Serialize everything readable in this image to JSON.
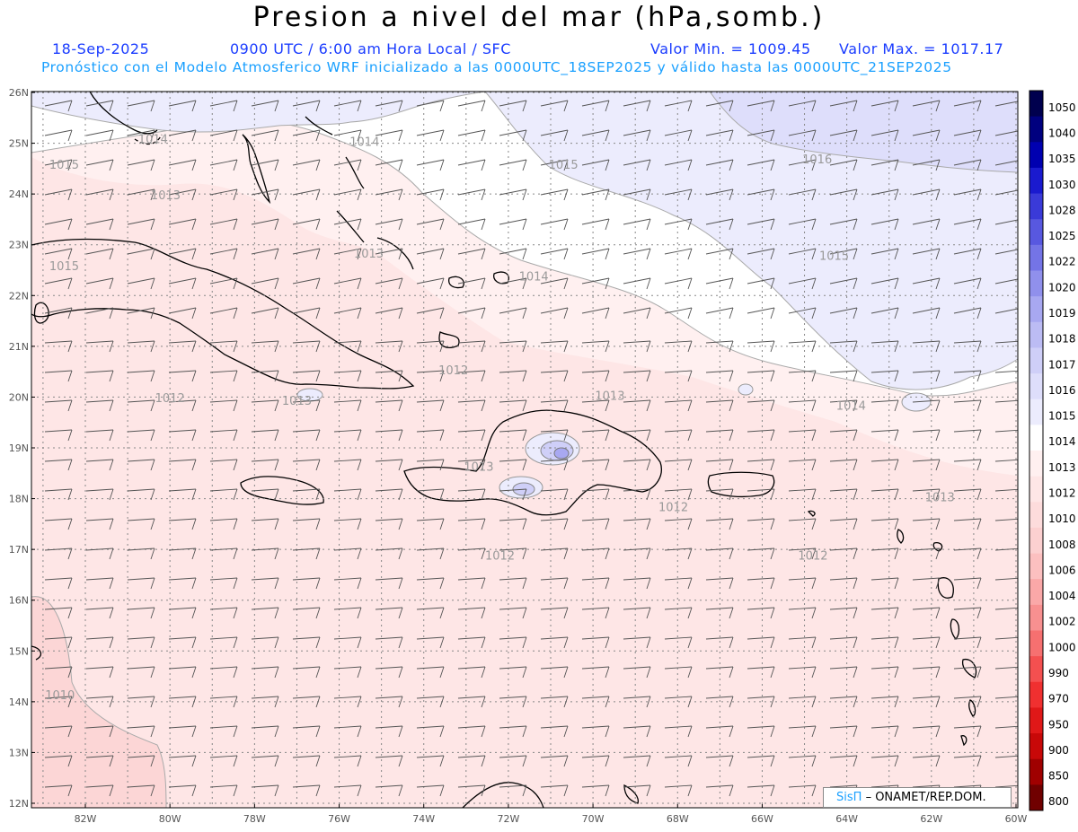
{
  "header": {
    "title": "Presion a nivel del mar (hPa,somb.)",
    "date": "18-Sep-2025",
    "time_info": "0900 UTC / 6:00 am Hora Local / SFC",
    "value_min": "Valor Min. = 1009.45",
    "value_max": "Valor Max. = 1017.17",
    "forecast_info": "Pronóstico con el Modelo Atmosferico WRF inicializado a las 0000UTC_18SEP2025 y válido hasta las  0000UTC_21SEP2025"
  },
  "map": {
    "lon_labels": [
      "82W",
      "80W",
      "78W",
      "76W",
      "74W",
      "72W",
      "70W",
      "68W",
      "66W",
      "64W",
      "62W",
      "60W"
    ],
    "lat_labels": [
      "26N",
      "25N",
      "24N",
      "23N",
      "22N",
      "21N",
      "20N",
      "19N",
      "18N",
      "17N",
      "16N",
      "15N",
      "14N",
      "13N",
      "12N"
    ],
    "contour_labels": [
      {
        "text": "1014",
        "lon": -80.4,
        "lat": 25.0
      },
      {
        "text": "1014",
        "lon": -75.4,
        "lat": 24.95
      },
      {
        "text": "1015",
        "lon": -70.7,
        "lat": 24.5
      },
      {
        "text": "1016",
        "lon": -64.7,
        "lat": 24.6
      },
      {
        "text": "1015",
        "lon": -82.5,
        "lat": 24.5
      },
      {
        "text": "1013",
        "lon": -80.1,
        "lat": 23.9
      },
      {
        "text": "1013",
        "lon": -75.3,
        "lat": 22.75
      },
      {
        "text": "1015",
        "lon": -64.3,
        "lat": 22.7
      },
      {
        "text": "1015",
        "lon": -82.5,
        "lat": 22.5
      },
      {
        "text": "1014",
        "lon": -71.4,
        "lat": 22.3
      },
      {
        "text": "1012",
        "lon": -73.3,
        "lat": 20.45
      },
      {
        "text": "1013",
        "lon": -69.6,
        "lat": 19.95
      },
      {
        "text": "1012",
        "lon": -80.0,
        "lat": 19.9
      },
      {
        "text": "1013",
        "lon": -77.0,
        "lat": 19.85
      },
      {
        "text": "1014",
        "lon": -63.9,
        "lat": 19.75
      },
      {
        "text": "1013",
        "lon": -72.7,
        "lat": 18.55
      },
      {
        "text": "1012",
        "lon": -68.1,
        "lat": 17.75
      },
      {
        "text": "1013",
        "lon": -61.8,
        "lat": 17.95
      },
      {
        "text": "1012",
        "lon": -72.2,
        "lat": 16.8
      },
      {
        "text": "1012",
        "lon": -64.8,
        "lat": 16.8
      },
      {
        "text": "1010",
        "lon": -82.6,
        "lat": 14.05
      }
    ]
  },
  "colorbar": {
    "levels": [
      "1050",
      "1040",
      "1035",
      "1030",
      "1028",
      "1025",
      "1022",
      "1020",
      "1019",
      "1018",
      "1017",
      "1016",
      "1015",
      "1014",
      "1013",
      "1012",
      "1010",
      "1008",
      "1006",
      "1004",
      "1002",
      "1000",
      "990",
      "970",
      "950",
      "900",
      "850",
      "800"
    ],
    "colors": [
      "#00004e",
      "#00007f",
      "#0000b0",
      "#1a1acf",
      "#3a3ad8",
      "#5858e0",
      "#7474e6",
      "#9090ec",
      "#a8a8f1",
      "#bcbcf4",
      "#cfcff8",
      "#dedefb",
      "#ececfd",
      "#ffffff",
      "#fff0f0",
      "#fee6e6",
      "#fddcdc",
      "#fcd0d0",
      "#fcc0c0",
      "#faa8a8",
      "#f89090",
      "#f67070",
      "#f45050",
      "#f03030",
      "#e01818",
      "#c80808",
      "#a00000",
      "#700000"
    ]
  },
  "credit": {
    "brand": "SisΠ",
    "text": "– ONAMET/REP.DOM."
  }
}
